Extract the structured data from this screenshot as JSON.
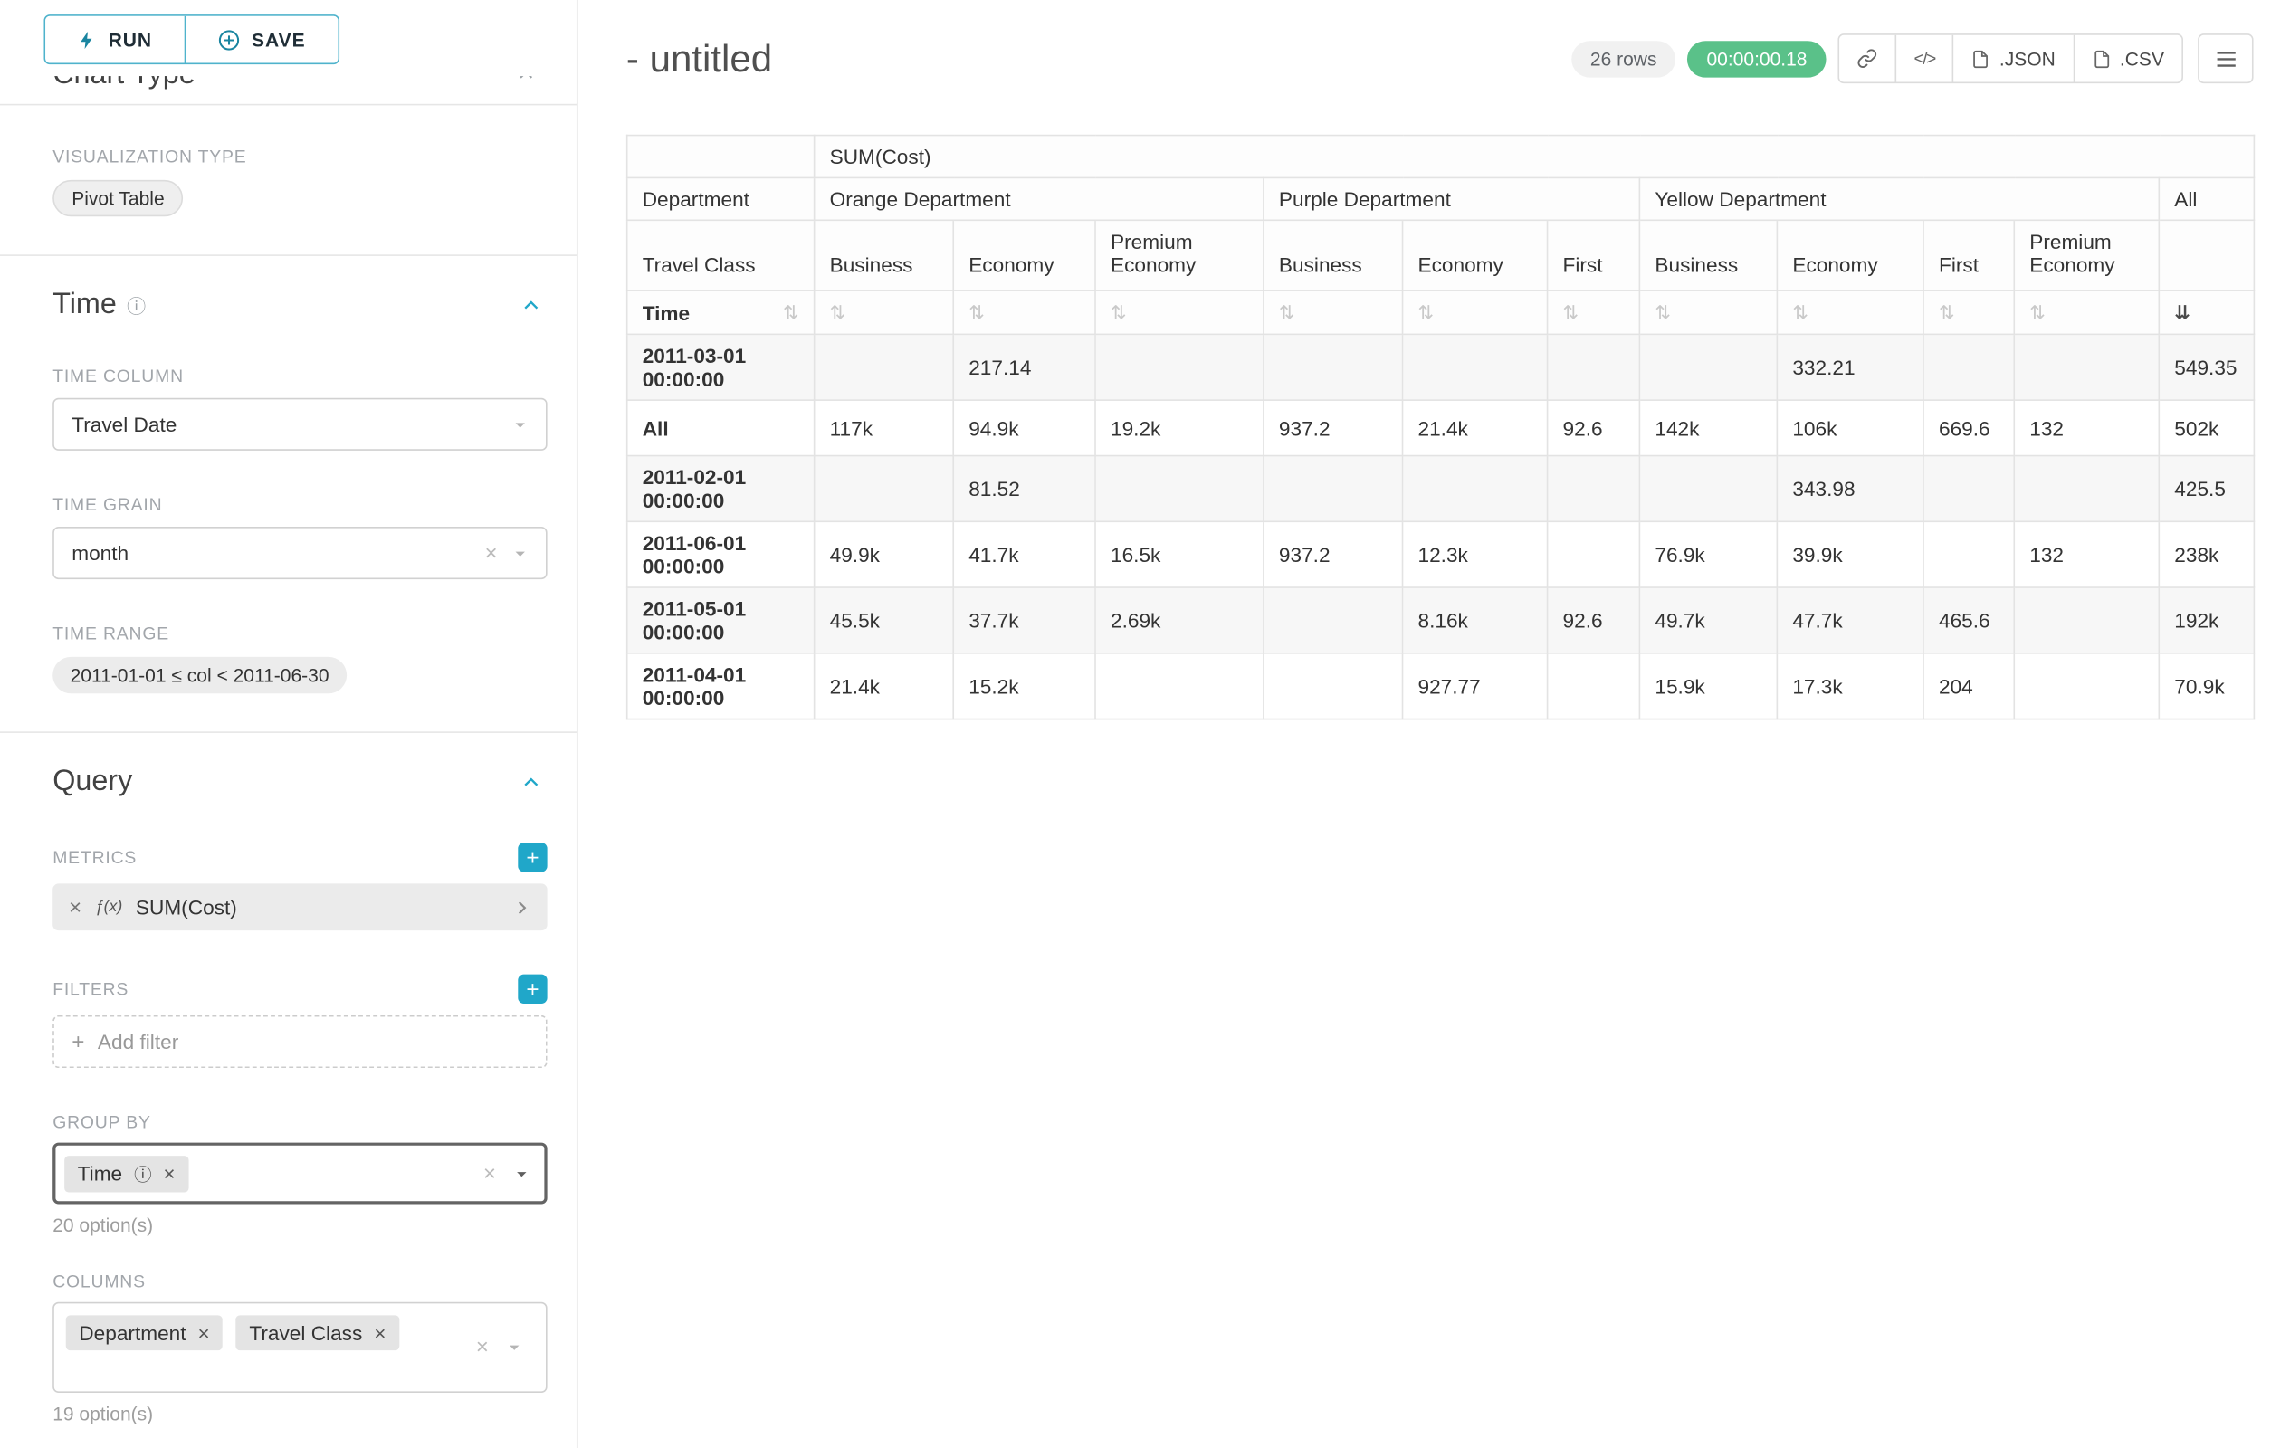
{
  "colors": {
    "accent": "#20a7c9",
    "success": "#5ac189"
  },
  "sidebar": {
    "run_label": "RUN",
    "save_label": "SAVE",
    "chart_type_heading": "Chart Type",
    "viz_type_label": "VISUALIZATION TYPE",
    "viz_type_value": "Pivot Table",
    "time_heading": "Time",
    "time_column_label": "TIME COLUMN",
    "time_column_value": "Travel Date",
    "time_grain_label": "TIME GRAIN",
    "time_grain_value": "month",
    "time_range_label": "TIME RANGE",
    "time_range_value": "2011-01-01 ≤ col < 2011-06-30",
    "query_heading": "Query",
    "metrics_label": "METRICS",
    "metric_fx": "ƒ(x)",
    "metric_name": "SUM(Cost)",
    "filters_label": "FILTERS",
    "add_filter_label": "Add filter",
    "group_by_label": "GROUP BY",
    "group_by_chips": [
      {
        "label": "Time",
        "has_info": true
      }
    ],
    "group_by_count": "20 option(s)",
    "columns_label": "COLUMNS",
    "columns_chips": [
      {
        "label": "Department"
      },
      {
        "label": "Travel Class"
      }
    ],
    "columns_count": "19 option(s)"
  },
  "header": {
    "title": "- untitled",
    "rows_badge": "26 rows",
    "timer": "00:00:00.18",
    "json_label": ".JSON",
    "csv_label": ".CSV"
  },
  "pivot": {
    "metric_header": "SUM(Cost)",
    "row_dim_header": "Department",
    "subrow_dim_header": "Travel Class",
    "time_header": "Time",
    "all_column_header": "All",
    "column_groups": [
      {
        "label": "Orange Department",
        "columns": [
          "Business",
          "Economy",
          "Premium Economy"
        ]
      },
      {
        "label": "Purple Department",
        "columns": [
          "Business",
          "Economy",
          "First"
        ]
      },
      {
        "label": "Yellow Department",
        "columns": [
          "Business",
          "Economy",
          "First",
          "Premium Economy"
        ]
      }
    ],
    "rows": [
      {
        "label": "2011-03-01 00:00:00",
        "values": [
          "",
          "217.14",
          "",
          "",
          "",
          "",
          "",
          "332.21",
          "",
          "",
          "549.35"
        ]
      },
      {
        "label": "All",
        "values": [
          "117k",
          "94.9k",
          "19.2k",
          "937.2",
          "21.4k",
          "92.6",
          "142k",
          "106k",
          "669.6",
          "132",
          "502k"
        ]
      },
      {
        "label": "2011-02-01 00:00:00",
        "values": [
          "",
          "81.52",
          "",
          "",
          "",
          "",
          "",
          "343.98",
          "",
          "",
          "425.5"
        ]
      },
      {
        "label": "2011-06-01 00:00:00",
        "values": [
          "49.9k",
          "41.7k",
          "16.5k",
          "937.2",
          "12.3k",
          "",
          "76.9k",
          "39.9k",
          "",
          "132",
          "238k"
        ]
      },
      {
        "label": "2011-05-01 00:00:00",
        "values": [
          "45.5k",
          "37.7k",
          "2.69k",
          "",
          "8.16k",
          "92.6",
          "49.7k",
          "47.7k",
          "465.6",
          "",
          "192k"
        ]
      },
      {
        "label": "2011-04-01 00:00:00",
        "values": [
          "21.4k",
          "15.2k",
          "",
          "",
          "927.77",
          "",
          "15.9k",
          "17.3k",
          "204",
          "",
          "70.9k"
        ]
      }
    ],
    "sorted_column": "All",
    "sort_direction": "desc"
  }
}
